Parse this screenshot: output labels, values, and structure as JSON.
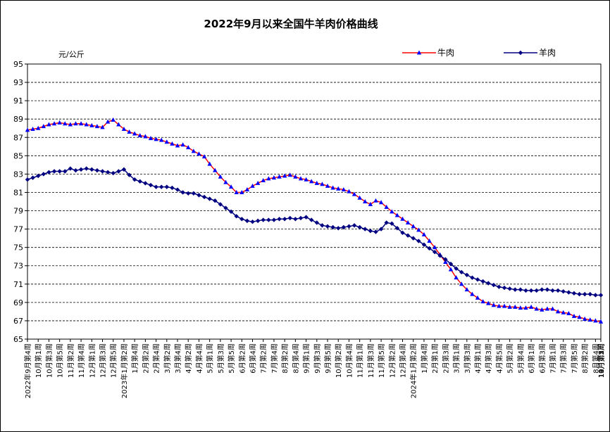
{
  "chart_data": {
    "type": "line",
    "title": "2022年9月以来全国牛羊肉价格曲线",
    "ylabel": "元/公斤",
    "ylim": [
      65,
      95
    ],
    "yticks": [
      65,
      67,
      69,
      71,
      73,
      75,
      77,
      79,
      81,
      83,
      85,
      87,
      89,
      91,
      93,
      95
    ],
    "grid": true,
    "legend_position": "top-right",
    "x_tick_labels": [
      "2022年9月第4周",
      "10月第1周",
      "10月第3周",
      "10月第5周",
      "11月第2周",
      "11月第4周",
      "12月第1周",
      "12月第3周",
      "12月第5周",
      "2023年1月第2周",
      "1月第4周",
      "2月第2周",
      "2月第4周",
      "3月第2周",
      "3月第4周",
      "4月第2周",
      "4月第4周",
      "5月第1周",
      "5月第3周",
      "5月第5周",
      "6月第2周",
      "6月第4周",
      "7月第2周",
      "7月第4周",
      "8月第2周",
      "8月第4周",
      "9月第1周",
      "9月第3周",
      "9月第5周",
      "10月第2周",
      "10月第4周",
      "11月第1周",
      "11月第3周",
      "11月第5周",
      "12月第2周",
      "12月第4周",
      "2024年1月第2周",
      "1月第4周",
      "2月第1周",
      "2月第3周",
      "3月第1周",
      "3月第3周",
      "4月第1周",
      "4月第3周",
      "4月第5周",
      "5月第2周",
      "5月第4周",
      "6月第1周",
      "6月第3周",
      "7月第1周",
      "7月第3周",
      "7月第5周",
      "8月第2周",
      "8月第4周",
      "9月第1周",
      "9月第3周",
      "10月第1周",
      "10月第3周",
      "10月第5周",
      "11月第2周"
    ],
    "series": [
      {
        "name": "牛肉",
        "color": "#ff0000",
        "marker_color": "#0000ff",
        "marker": "triangle",
        "values": [
          87.8,
          87.9,
          88.0,
          88.2,
          88.4,
          88.5,
          88.6,
          88.5,
          88.4,
          88.5,
          88.5,
          88.4,
          88.3,
          88.2,
          88.1,
          88.7,
          88.9,
          88.4,
          87.9,
          87.6,
          87.4,
          87.2,
          87.1,
          86.9,
          86.8,
          86.7,
          86.5,
          86.3,
          86.1,
          86.2,
          85.9,
          85.5,
          85.2,
          84.9,
          84.1,
          83.4,
          82.7,
          82.1,
          81.6,
          81.0,
          81.0,
          81.3,
          81.7,
          82.0,
          82.3,
          82.5,
          82.6,
          82.7,
          82.8,
          82.9,
          82.7,
          82.5,
          82.4,
          82.2,
          82.0,
          81.9,
          81.7,
          81.5,
          81.4,
          81.3,
          81.1,
          80.8,
          80.4,
          80.0,
          79.7,
          80.1,
          79.9,
          79.4,
          78.9,
          78.5,
          78.1,
          77.7,
          77.3,
          76.9,
          76.4,
          75.7,
          75.0,
          74.2,
          73.4,
          72.6,
          71.7,
          71.0,
          70.4,
          69.9,
          69.5,
          69.1,
          68.9,
          68.7,
          68.6,
          68.6,
          68.5,
          68.5,
          68.4,
          68.4,
          68.5,
          68.3,
          68.2,
          68.3,
          68.3,
          68.0,
          67.9,
          67.8,
          67.5,
          67.4,
          67.2,
          67.1,
          67.0,
          66.9
        ]
      },
      {
        "name": "羊肉",
        "color": "#000080",
        "marker_color": "#000080",
        "marker": "diamond",
        "values": [
          82.4,
          82.6,
          82.8,
          83.0,
          83.2,
          83.3,
          83.3,
          83.3,
          83.6,
          83.4,
          83.5,
          83.6,
          83.5,
          83.4,
          83.3,
          83.2,
          83.1,
          83.3,
          83.5,
          82.9,
          82.4,
          82.2,
          82.0,
          81.8,
          81.6,
          81.6,
          81.6,
          81.5,
          81.3,
          81.0,
          80.9,
          80.9,
          80.7,
          80.5,
          80.3,
          80.1,
          79.7,
          79.3,
          78.9,
          78.4,
          78.1,
          77.9,
          77.8,
          77.9,
          78.0,
          78.0,
          78.0,
          78.1,
          78.1,
          78.2,
          78.1,
          78.2,
          78.3,
          78.0,
          77.7,
          77.4,
          77.3,
          77.2,
          77.1,
          77.2,
          77.3,
          77.4,
          77.2,
          77.0,
          76.8,
          76.7,
          77.0,
          77.7,
          77.6,
          77.1,
          76.6,
          76.3,
          76.0,
          75.7,
          75.3,
          74.9,
          74.5,
          74.1,
          73.7,
          73.2,
          72.7,
          72.3,
          72.0,
          71.7,
          71.5,
          71.3,
          71.1,
          70.9,
          70.7,
          70.6,
          70.5,
          70.4,
          70.4,
          70.3,
          70.3,
          70.3,
          70.4,
          70.4,
          70.3,
          70.3,
          70.2,
          70.1,
          70.0,
          69.9,
          69.9,
          69.9,
          69.8,
          69.8
        ]
      }
    ]
  }
}
